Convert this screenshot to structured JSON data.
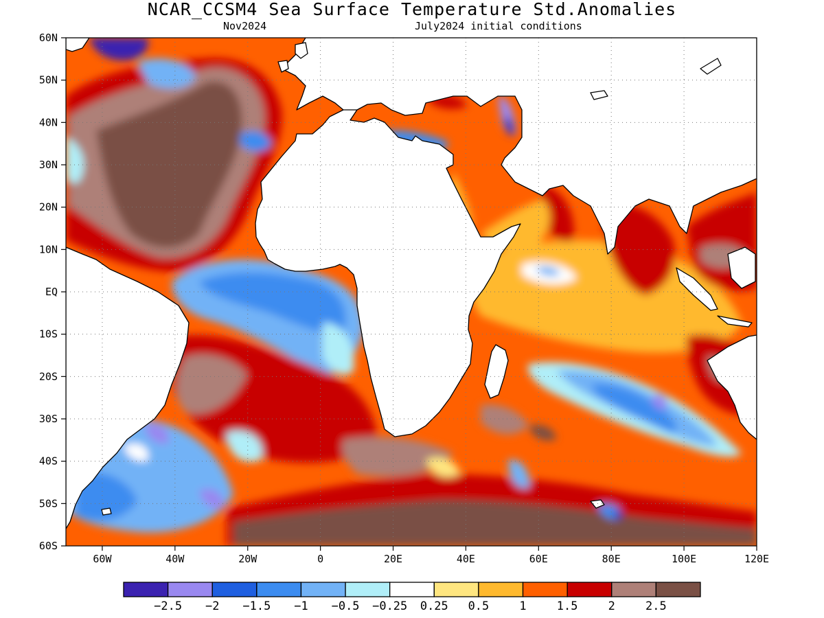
{
  "title": "NCAR_CCSM4 Sea Surface Temperature Std.Anomalies",
  "subtitle_left": "Nov2024",
  "subtitle_right": "July2024 initial conditions",
  "map": {
    "lon_range": [
      -70,
      120
    ],
    "lat_range": [
      -60,
      60
    ],
    "lon_ticks": [
      {
        "v": -60,
        "label": "60W"
      },
      {
        "v": -40,
        "label": "40W"
      },
      {
        "v": -20,
        "label": "20W"
      },
      {
        "v": 0,
        "label": "0"
      },
      {
        "v": 20,
        "label": "20E"
      },
      {
        "v": 40,
        "label": "40E"
      },
      {
        "v": 60,
        "label": "60E"
      },
      {
        "v": 80,
        "label": "80E"
      },
      {
        "v": 100,
        "label": "100E"
      },
      {
        "v": 120,
        "label": "120E"
      }
    ],
    "lat_ticks": [
      {
        "v": 60,
        "label": "60N"
      },
      {
        "v": 50,
        "label": "50N"
      },
      {
        "v": 40,
        "label": "40N"
      },
      {
        "v": 30,
        "label": "30N"
      },
      {
        "v": 20,
        "label": "20N"
      },
      {
        "v": 10,
        "label": "10N"
      },
      {
        "v": 0,
        "label": "EQ"
      },
      {
        "v": -10,
        "label": "10S"
      },
      {
        "v": -20,
        "label": "20S"
      },
      {
        "v": -30,
        "label": "30S"
      },
      {
        "v": -40,
        "label": "40S"
      },
      {
        "v": -50,
        "label": "50S"
      },
      {
        "v": -60,
        "label": "60S"
      }
    ],
    "gridlines": true
  },
  "colorbar": {
    "colors": [
      "#3b22b0",
      "#9988f0",
      "#1f5fe0",
      "#3c8cf0",
      "#72b2f6",
      "#b0eef8",
      "#ffffff",
      "#ffe680",
      "#ffb92e",
      "#ff6000",
      "#c80000",
      "#ae8078",
      "#7a5045"
    ],
    "labels": [
      "−2.5",
      "−2",
      "−1.5",
      "−1",
      "−0.5",
      "−0.25",
      "0.25",
      "0.5",
      "1",
      "1.5",
      "2",
      "2.5"
    ]
  },
  "land_color": "#ffffff",
  "coast_color": "#000000"
}
